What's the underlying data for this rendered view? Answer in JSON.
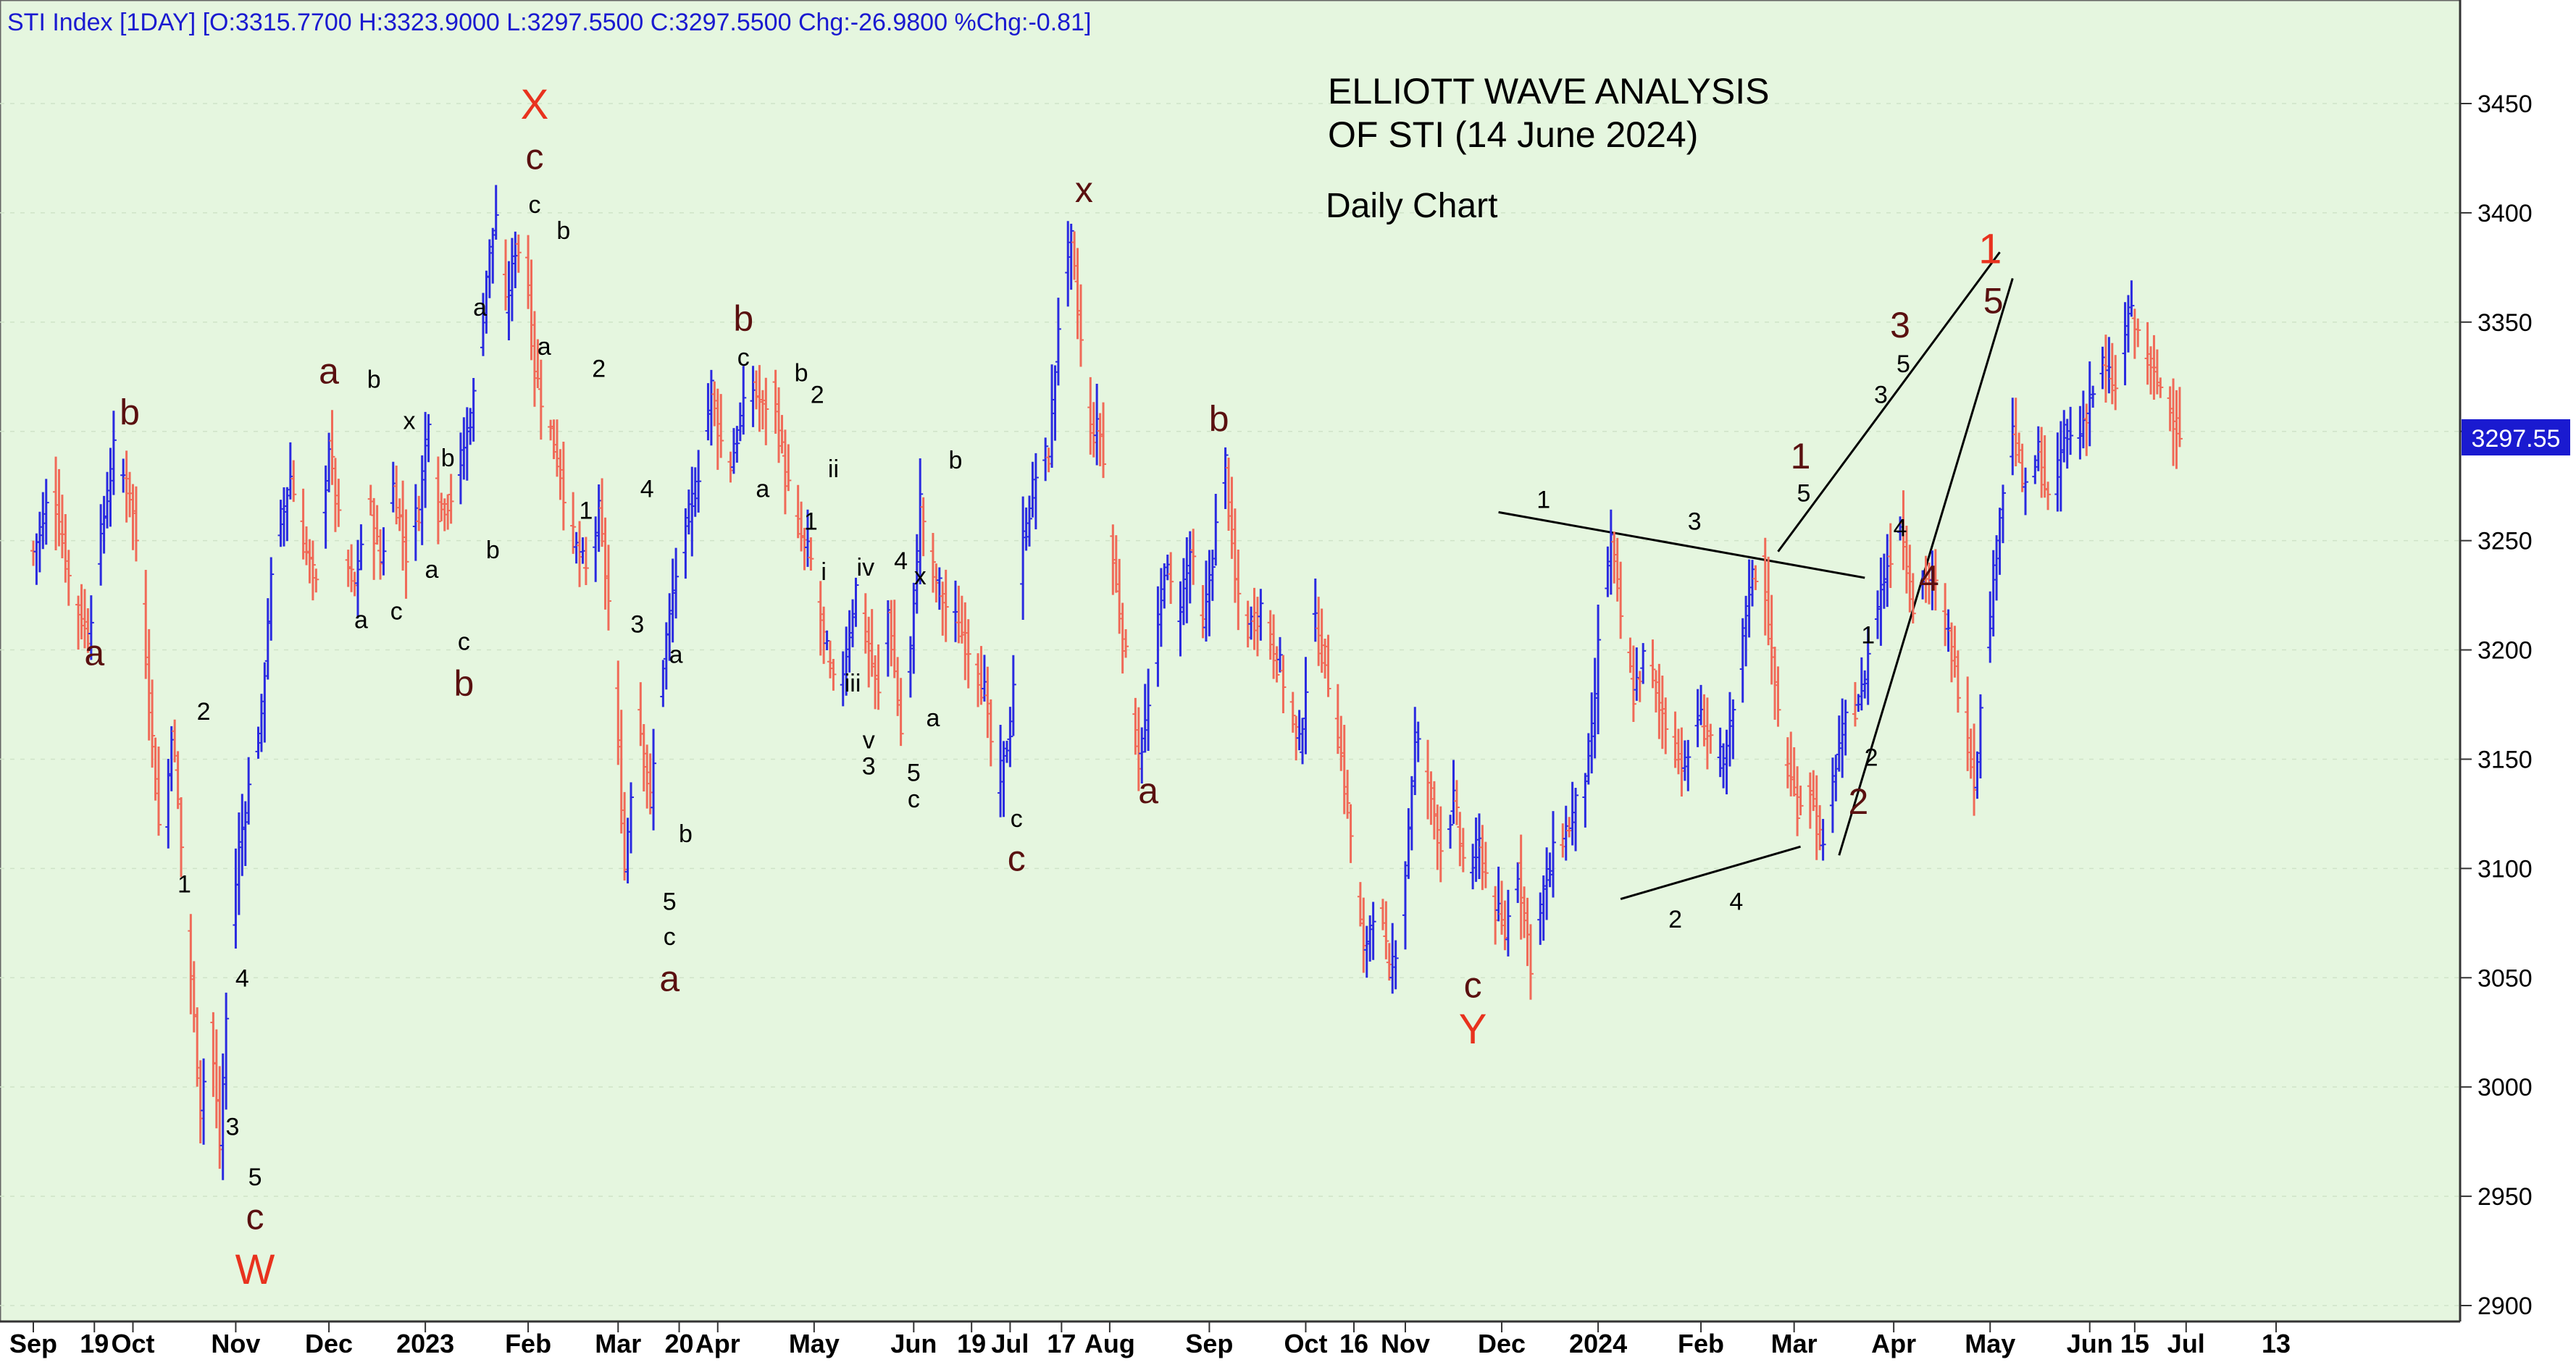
{
  "chart_data": {
    "type": "bar",
    "header": "STI Index [1DAY] [O:3315.7700 H:3323.9000 L:3297.5500 C:3297.5500 Chg:-26.9800 %Chg:-0.81]",
    "title": "ELLIOTT WAVE ANALYSIS",
    "title_line2": "OF STI (14 June 2024)",
    "subtitle": "Daily Chart",
    "last_price_label": "3297.55",
    "ylim": [
      2895,
      3472
    ],
    "y_ticks": [
      "3450",
      "3400",
      "3350",
      "3300",
      "3250",
      "3200",
      "3150",
      "3100",
      "3050",
      "3000",
      "2950",
      "2900"
    ],
    "x_labels": [
      {
        "t": "Sep",
        "d": 0
      },
      {
        "t": "19",
        "d": 19
      },
      {
        "t": "Oct",
        "d": 31
      },
      {
        "t": "Nov",
        "d": 63
      },
      {
        "t": "Dec",
        "d": 92
      },
      {
        "t": "2023",
        "d": 122
      },
      {
        "t": "Feb",
        "d": 154
      },
      {
        "t": "Mar",
        "d": 182
      },
      {
        "t": "20",
        "d": 201
      },
      {
        "t": "Apr",
        "d": 213
      },
      {
        "t": "May",
        "d": 243
      },
      {
        "t": "Jun",
        "d": 274
      },
      {
        "t": "19",
        "d": 292
      },
      {
        "t": "Jul",
        "d": 304
      },
      {
        "t": "17",
        "d": 320
      },
      {
        "t": "Aug",
        "d": 335
      },
      {
        "t": "Sep",
        "d": 366
      },
      {
        "t": "Oct",
        "d": 396
      },
      {
        "t": "16",
        "d": 411
      },
      {
        "t": "Nov",
        "d": 427
      },
      {
        "t": "Dec",
        "d": 457
      },
      {
        "t": "2024",
        "d": 487
      },
      {
        "t": "Feb",
        "d": 519
      },
      {
        "t": "Mar",
        "d": 548
      },
      {
        "t": "Apr",
        "d": 579
      },
      {
        "t": "May",
        "d": 609
      },
      {
        "t": "Jun",
        "d": 640
      },
      {
        "t": "15",
        "d": 654
      },
      {
        "t": "Jul",
        "d": 670
      },
      {
        "t": "13",
        "d": 698
      }
    ],
    "last_day": 710,
    "price_path": [
      [
        0,
        3245
      ],
      [
        6,
        3275
      ],
      [
        12,
        3225
      ],
      [
        17,
        3208
      ],
      [
        22,
        3262
      ],
      [
        25,
        3290
      ],
      [
        30,
        3272
      ],
      [
        33,
        3240
      ],
      [
        36,
        3178
      ],
      [
        40,
        3100
      ],
      [
        43,
        3165
      ],
      [
        45,
        3130
      ],
      [
        49,
        3050
      ],
      [
        52,
        2990
      ],
      [
        55,
        3030
      ],
      [
        58,
        2972
      ],
      [
        61,
        3060
      ],
      [
        64,
        3110
      ],
      [
        68,
        3145
      ],
      [
        71,
        3170
      ],
      [
        73,
        3215
      ],
      [
        75,
        3245
      ],
      [
        80,
        3280
      ],
      [
        84,
        3250
      ],
      [
        88,
        3228
      ],
      [
        92,
        3295
      ],
      [
        96,
        3245
      ],
      [
        100,
        3228
      ],
      [
        104,
        3270
      ],
      [
        108,
        3240
      ],
      [
        112,
        3275
      ],
      [
        116,
        3245
      ],
      [
        120,
        3265
      ],
      [
        123,
        3310
      ],
      [
        126,
        3265
      ],
      [
        131,
        3272
      ],
      [
        135,
        3300
      ],
      [
        138,
        3322
      ],
      [
        141,
        3372
      ],
      [
        144,
        3400
      ],
      [
        147,
        3355
      ],
      [
        150,
        3385
      ],
      [
        153,
        3382
      ],
      [
        156,
        3328
      ],
      [
        160,
        3305
      ],
      [
        164,
        3282
      ],
      [
        168,
        3250
      ],
      [
        172,
        3235
      ],
      [
        176,
        3262
      ],
      [
        180,
        3208
      ],
      [
        184,
        3100
      ],
      [
        188,
        3175
      ],
      [
        192,
        3130
      ],
      [
        196,
        3195
      ],
      [
        200,
        3235
      ],
      [
        204,
        3260
      ],
      [
        208,
        3290
      ],
      [
        211,
        3320
      ],
      [
        214,
        3295
      ],
      [
        217,
        3285
      ],
      [
        220,
        3305
      ],
      [
        224,
        3320
      ],
      [
        227,
        3310
      ],
      [
        230,
        3320
      ],
      [
        234,
        3280
      ],
      [
        238,
        3255
      ],
      [
        242,
        3240
      ],
      [
        246,
        3205
      ],
      [
        250,
        3175
      ],
      [
        253,
        3200
      ],
      [
        256,
        3228
      ],
      [
        260,
        3200
      ],
      [
        263,
        3178
      ],
      [
        266,
        3218
      ],
      [
        270,
        3162
      ],
      [
        273,
        3200
      ],
      [
        276,
        3268
      ],
      [
        280,
        3235
      ],
      [
        284,
        3220
      ],
      [
        288,
        3210
      ],
      [
        292,
        3200
      ],
      [
        296,
        3180
      ],
      [
        300,
        3135
      ],
      [
        304,
        3165
      ],
      [
        308,
        3250
      ],
      [
        312,
        3280
      ],
      [
        316,
        3290
      ],
      [
        320,
        3370
      ],
      [
        323,
        3385
      ],
      [
        326,
        3340
      ],
      [
        329,
        3300
      ],
      [
        332,
        3300
      ],
      [
        336,
        3240
      ],
      [
        340,
        3195
      ],
      [
        344,
        3150
      ],
      [
        348,
        3180
      ],
      [
        352,
        3240
      ],
      [
        356,
        3215
      ],
      [
        360,
        3245
      ],
      [
        364,
        3210
      ],
      [
        368,
        3255
      ],
      [
        371,
        3285
      ],
      [
        374,
        3230
      ],
      [
        378,
        3210
      ],
      [
        382,
        3220
      ],
      [
        386,
        3200
      ],
      [
        390,
        3182
      ],
      [
        394,
        3155
      ],
      [
        398,
        3215
      ],
      [
        402,
        3195
      ],
      [
        406,
        3162
      ],
      [
        410,
        3115
      ],
      [
        414,
        3060
      ],
      [
        418,
        3090
      ],
      [
        422,
        3050
      ],
      [
        426,
        3080
      ],
      [
        430,
        3160
      ],
      [
        434,
        3140
      ],
      [
        438,
        3110
      ],
      [
        442,
        3130
      ],
      [
        446,
        3095
      ],
      [
        450,
        3110
      ],
      [
        454,
        3085
      ],
      [
        458,
        3070
      ],
      [
        462,
        3100
      ],
      [
        466,
        3058
      ],
      [
        470,
        3090
      ],
      [
        474,
        3110
      ],
      [
        478,
        3120
      ],
      [
        482,
        3135
      ],
      [
        485,
        3160
      ],
      [
        488,
        3220
      ],
      [
        491,
        3250
      ],
      [
        494,
        3215
      ],
      [
        498,
        3180
      ],
      [
        502,
        3200
      ],
      [
        506,
        3175
      ],
      [
        510,
        3160
      ],
      [
        514,
        3145
      ],
      [
        518,
        3170
      ],
      [
        522,
        3160
      ],
      [
        526,
        3145
      ],
      [
        530,
        3180
      ],
      [
        534,
        3230
      ],
      [
        538,
        3242
      ],
      [
        541,
        3195
      ],
      [
        545,
        3150
      ],
      [
        549,
        3130
      ],
      [
        553,
        3138
      ],
      [
        557,
        3105
      ],
      [
        561,
        3150
      ],
      [
        565,
        3170
      ],
      [
        569,
        3180
      ],
      [
        573,
        3215
      ],
      [
        577,
        3240
      ],
      [
        581,
        3260
      ],
      [
        585,
        3220
      ],
      [
        589,
        3235
      ],
      [
        593,
        3225
      ],
      [
        597,
        3200
      ],
      [
        601,
        3170
      ],
      [
        604,
        3140
      ],
      [
        608,
        3200
      ],
      [
        612,
        3265
      ],
      [
        616,
        3300
      ],
      [
        620,
        3270
      ],
      [
        624,
        3290
      ],
      [
        628,
        3260
      ],
      [
        632,
        3300
      ],
      [
        636,
        3295
      ],
      [
        640,
        3315
      ],
      [
        644,
        3330
      ],
      [
        648,
        3318
      ],
      [
        652,
        3355
      ],
      [
        656,
        3340
      ],
      [
        660,
        3325
      ],
      [
        664,
        3315
      ],
      [
        668,
        3300
      ]
    ],
    "trendlines": [
      [
        [
          456,
          3263
        ],
        [
          570,
          3233
        ]
      ],
      [
        [
          494,
          3086
        ],
        [
          550,
          3110
        ]
      ],
      [
        [
          543,
          3245
        ],
        [
          612,
          3382
        ]
      ],
      [
        [
          562,
          3106
        ],
        [
          616,
          3370
        ]
      ]
    ],
    "annotations": [
      {
        "t": "b",
        "d": 30,
        "v": 3303,
        "c": "#5a1010",
        "s": "L"
      },
      {
        "t": "a",
        "d": 19,
        "v": 3193,
        "c": "#5a1010",
        "s": "L"
      },
      {
        "t": "2",
        "d": 53,
        "v": 3168,
        "c": "#000000",
        "s": "S"
      },
      {
        "t": "1",
        "d": 47,
        "v": 3089,
        "c": "#000000",
        "s": "S"
      },
      {
        "t": "4",
        "d": 65,
        "v": 3046,
        "c": "#000000",
        "s": "S"
      },
      {
        "t": "3",
        "d": 62,
        "v": 2978,
        "c": "#000000",
        "s": "S"
      },
      {
        "t": "5",
        "d": 69,
        "v": 2955,
        "c": "#000000",
        "s": "S"
      },
      {
        "t": "c",
        "d": 69,
        "v": 2935,
        "c": "#5a1010",
        "s": "L"
      },
      {
        "t": "W",
        "d": 69,
        "v": 2910,
        "c": "#e8321e",
        "s": "X"
      },
      {
        "t": "a",
        "d": 92,
        "v": 3322,
        "c": "#5a1010",
        "s": "L"
      },
      {
        "t": "b",
        "d": 106,
        "v": 3320,
        "c": "#000000",
        "s": "S"
      },
      {
        "t": "x",
        "d": 117,
        "v": 3301,
        "c": "#000000",
        "s": "S"
      },
      {
        "t": "b",
        "d": 129,
        "v": 3284,
        "c": "#000000",
        "s": "S"
      },
      {
        "t": "a",
        "d": 139,
        "v": 3353,
        "c": "#000000",
        "s": "S"
      },
      {
        "t": "a",
        "d": 102,
        "v": 3210,
        "c": "#000000",
        "s": "S"
      },
      {
        "t": "c",
        "d": 113,
        "v": 3214,
        "c": "#000000",
        "s": "S"
      },
      {
        "t": "a",
        "d": 124,
        "v": 3233,
        "c": "#000000",
        "s": "S"
      },
      {
        "t": "b",
        "d": 143,
        "v": 3242,
        "c": "#000000",
        "s": "S"
      },
      {
        "t": "c",
        "d": 134,
        "v": 3200,
        "c": "#000000",
        "s": "S"
      },
      {
        "t": "b",
        "d": 134,
        "v": 3179,
        "c": "#5a1010",
        "s": "L"
      },
      {
        "t": "X",
        "d": 156,
        "v": 3443,
        "c": "#e8321e",
        "s": "X"
      },
      {
        "t": "c",
        "d": 156,
        "v": 3420,
        "c": "#5a1010",
        "s": "L"
      },
      {
        "t": "c",
        "d": 156,
        "v": 3400,
        "c": "#000000",
        "s": "S"
      },
      {
        "t": "b",
        "d": 165,
        "v": 3388,
        "c": "#000000",
        "s": "S"
      },
      {
        "t": "a",
        "d": 159,
        "v": 3335,
        "c": "#000000",
        "s": "S"
      },
      {
        "t": "2",
        "d": 176,
        "v": 3325,
        "c": "#000000",
        "s": "S"
      },
      {
        "t": "1",
        "d": 172,
        "v": 3260,
        "c": "#000000",
        "s": "S"
      },
      {
        "t": "4",
        "d": 191,
        "v": 3270,
        "c": "#000000",
        "s": "S"
      },
      {
        "t": "3",
        "d": 188,
        "v": 3208,
        "c": "#000000",
        "s": "S"
      },
      {
        "t": "a",
        "d": 200,
        "v": 3194,
        "c": "#000000",
        "s": "S"
      },
      {
        "t": "b",
        "d": 203,
        "v": 3112,
        "c": "#000000",
        "s": "S"
      },
      {
        "t": "5",
        "d": 198,
        "v": 3081,
        "c": "#000000",
        "s": "S"
      },
      {
        "t": "c",
        "d": 198,
        "v": 3065,
        "c": "#000000",
        "s": "S"
      },
      {
        "t": "a",
        "d": 198,
        "v": 3044,
        "c": "#5a1010",
        "s": "L"
      },
      {
        "t": "b",
        "d": 221,
        "v": 3346,
        "c": "#5a1010",
        "s": "L"
      },
      {
        "t": "c",
        "d": 221,
        "v": 3330,
        "c": "#000000",
        "s": "S"
      },
      {
        "t": "b",
        "d": 239,
        "v": 3323,
        "c": "#000000",
        "s": "S"
      },
      {
        "t": "2",
        "d": 244,
        "v": 3313,
        "c": "#000000",
        "s": "S"
      },
      {
        "t": "a",
        "d": 227,
        "v": 3270,
        "c": "#000000",
        "s": "S"
      },
      {
        "t": "ii",
        "d": 249,
        "v": 3279,
        "c": "#000000",
        "s": "S"
      },
      {
        "t": "1",
        "d": 242,
        "v": 3255,
        "c": "#000000",
        "s": "S"
      },
      {
        "t": "i",
        "d": 246,
        "v": 3232,
        "c": "#000000",
        "s": "S"
      },
      {
        "t": "iv",
        "d": 259,
        "v": 3234,
        "c": "#000000",
        "s": "S"
      },
      {
        "t": "iii",
        "d": 255,
        "v": 3181,
        "c": "#000000",
        "s": "S"
      },
      {
        "t": "v",
        "d": 260,
        "v": 3155,
        "c": "#000000",
        "s": "S"
      },
      {
        "t": "3",
        "d": 260,
        "v": 3143,
        "c": "#000000",
        "s": "S"
      },
      {
        "t": "4",
        "d": 270,
        "v": 3237,
        "c": "#000000",
        "s": "S"
      },
      {
        "t": "x",
        "d": 276,
        "v": 3230,
        "c": "#000000",
        "s": "S"
      },
      {
        "t": "5",
        "d": 274,
        "v": 3140,
        "c": "#000000",
        "s": "S"
      },
      {
        "t": "c",
        "d": 274,
        "v": 3128,
        "c": "#000000",
        "s": "S"
      },
      {
        "t": "a",
        "d": 280,
        "v": 3165,
        "c": "#000000",
        "s": "S"
      },
      {
        "t": "b",
        "d": 287,
        "v": 3283,
        "c": "#000000",
        "s": "S"
      },
      {
        "t": "c",
        "d": 306,
        "v": 3119,
        "c": "#000000",
        "s": "S"
      },
      {
        "t": "c",
        "d": 306,
        "v": 3099,
        "c": "#5a1010",
        "s": "L"
      },
      {
        "t": "x",
        "d": 327,
        "v": 3405,
        "c": "#5a1010",
        "s": "L"
      },
      {
        "t": "b",
        "d": 369,
        "v": 3300,
        "c": "#5a1010",
        "s": "L"
      },
      {
        "t": "a",
        "d": 347,
        "v": 3130,
        "c": "#5a1010",
        "s": "L"
      },
      {
        "t": "c",
        "d": 448,
        "v": 3041,
        "c": "#5a1010",
        "s": "L"
      },
      {
        "t": "Y",
        "d": 448,
        "v": 3020,
        "c": "#e8321e",
        "s": "X"
      },
      {
        "t": "1",
        "d": 470,
        "v": 3265,
        "c": "#000000",
        "s": "S"
      },
      {
        "t": "3",
        "d": 517,
        "v": 3255,
        "c": "#000000",
        "s": "S"
      },
      {
        "t": "2",
        "d": 511,
        "v": 3073,
        "c": "#000000",
        "s": "S"
      },
      {
        "t": "4",
        "d": 530,
        "v": 3081,
        "c": "#000000",
        "s": "S"
      },
      {
        "t": "1",
        "d": 550,
        "v": 3283,
        "c": "#5a1010",
        "s": "L"
      },
      {
        "t": "5",
        "d": 551,
        "v": 3268,
        "c": "#000000",
        "s": "S"
      },
      {
        "t": "1",
        "d": 571,
        "v": 3203,
        "c": "#000000",
        "s": "S"
      },
      {
        "t": "2",
        "d": 572,
        "v": 3147,
        "c": "#000000",
        "s": "S"
      },
      {
        "t": "2",
        "d": 568,
        "v": 3125,
        "c": "#5a1010",
        "s": "L"
      },
      {
        "t": "3",
        "d": 581,
        "v": 3343,
        "c": "#5a1010",
        "s": "L"
      },
      {
        "t": "5",
        "d": 582,
        "v": 3327,
        "c": "#000000",
        "s": "S"
      },
      {
        "t": "3",
        "d": 575,
        "v": 3313,
        "c": "#000000",
        "s": "S"
      },
      {
        "t": "4",
        "d": 581,
        "v": 3252,
        "c": "#000000",
        "s": "S"
      },
      {
        "t": "4",
        "d": 590,
        "v": 3227,
        "c": "#5a1010",
        "s": "L"
      },
      {
        "t": "1",
        "d": 609,
        "v": 3377,
        "c": "#e8321e",
        "s": "X"
      },
      {
        "t": "5",
        "d": 610,
        "v": 3354,
        "c": "#5a1010",
        "s": "L"
      }
    ]
  }
}
